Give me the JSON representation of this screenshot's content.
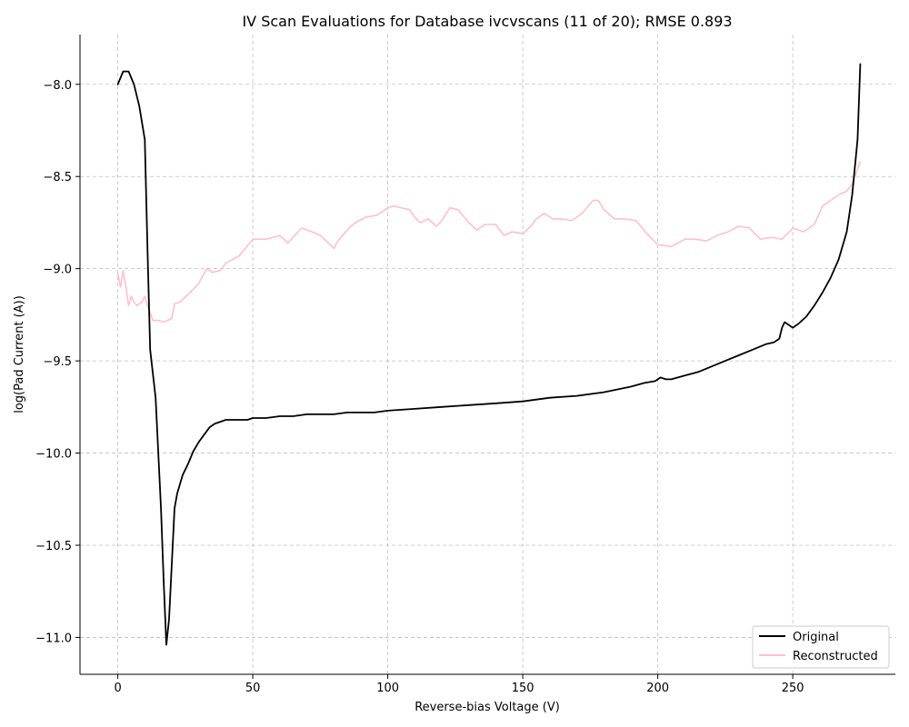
{
  "chart_data": {
    "type": "line",
    "title": "IV Scan Evaluations for Database ivcvscans (11 of 20); RMSE 0.893",
    "xlabel": "Reverse-bias Voltage (V)",
    "ylabel": "log(Pad Current (A))",
    "xlim": [
      -14,
      288
    ],
    "ylim": [
      -11.2,
      -7.73
    ],
    "x_ticks": [
      0,
      50,
      100,
      150,
      200,
      250
    ],
    "y_ticks": [
      -8.0,
      -8.5,
      -9.0,
      -9.5,
      -10.0,
      -10.5,
      -11.0
    ],
    "x_tick_labels": [
      "0",
      "50",
      "100",
      "150",
      "200",
      "250"
    ],
    "y_tick_labels": [
      "−8.0",
      "−8.5",
      "−9.0",
      "−9.5",
      "−10.0",
      "−10.5",
      "−11.0"
    ],
    "grid": true,
    "legend_position": "lower-right",
    "series": [
      {
        "name": "Original",
        "color": "#000000",
        "x": [
          0,
          2,
          4,
          6,
          8,
          10,
          11,
          12,
          14,
          16,
          17,
          18,
          19,
          20,
          21,
          22,
          23,
          24,
          26,
          28,
          30,
          32,
          34,
          36,
          38,
          40,
          45,
          48,
          50,
          55,
          60,
          65,
          70,
          80,
          85,
          90,
          95,
          100,
          110,
          120,
          130,
          140,
          150,
          160,
          170,
          180,
          190,
          195,
          199,
          201,
          203,
          205,
          210,
          215,
          220,
          225,
          230,
          235,
          240,
          243,
          245,
          246,
          247,
          248,
          250,
          252,
          255,
          258,
          261,
          264,
          267,
          270,
          272,
          274,
          275
        ],
        "y": [
          -8.0,
          -7.93,
          -7.93,
          -8.0,
          -8.12,
          -8.3,
          -8.9,
          -9.44,
          -9.7,
          -10.3,
          -10.7,
          -11.04,
          -10.9,
          -10.6,
          -10.3,
          -10.22,
          -10.17,
          -10.12,
          -10.06,
          -9.99,
          -9.94,
          -9.9,
          -9.86,
          -9.84,
          -9.83,
          -9.82,
          -9.82,
          -9.82,
          -9.81,
          -9.81,
          -9.8,
          -9.8,
          -9.79,
          -9.79,
          -9.78,
          -9.78,
          -9.78,
          -9.77,
          -9.76,
          -9.75,
          -9.74,
          -9.73,
          -9.72,
          -9.7,
          -9.69,
          -9.67,
          -9.64,
          -9.62,
          -9.61,
          -9.59,
          -9.6,
          -9.6,
          -9.58,
          -9.56,
          -9.53,
          -9.5,
          -9.47,
          -9.44,
          -9.41,
          -9.4,
          -9.38,
          -9.32,
          -9.29,
          -9.3,
          -9.32,
          -9.3,
          -9.26,
          -9.2,
          -9.13,
          -9.05,
          -8.95,
          -8.8,
          -8.6,
          -8.3,
          -7.89
        ]
      },
      {
        "name": "Reconstructed",
        "color": "#ffc0cb",
        "x": [
          0,
          1,
          2,
          3,
          4,
          5,
          6,
          7,
          8,
          9,
          10,
          11,
          12,
          13,
          15,
          17,
          20,
          21,
          23,
          26,
          30,
          33,
          35,
          38,
          40,
          45,
          50,
          55,
          60,
          63,
          68,
          72,
          75,
          78,
          80,
          82,
          85,
          88,
          92,
          96,
          100,
          102,
          105,
          108,
          110,
          112,
          115,
          118,
          120,
          123,
          126,
          130,
          133,
          136,
          140,
          143,
          146,
          150,
          153,
          155,
          158,
          161,
          165,
          168,
          172,
          176,
          178,
          180,
          184,
          188,
          192,
          196,
          200,
          205,
          210,
          214,
          218,
          222,
          226,
          230,
          234,
          238,
          242,
          246,
          250,
          254,
          258,
          261,
          264,
          267,
          270,
          272,
          275
        ],
        "y": [
          -9.03,
          -9.1,
          -9.01,
          -9.1,
          -9.2,
          -9.15,
          -9.18,
          -9.2,
          -9.19,
          -9.18,
          -9.15,
          -9.2,
          -9.24,
          -9.28,
          -9.28,
          -9.29,
          -9.27,
          -9.19,
          -9.18,
          -9.14,
          -9.08,
          -9.0,
          -9.02,
          -9.01,
          -8.97,
          -8.93,
          -8.84,
          -8.84,
          -8.82,
          -8.86,
          -8.78,
          -8.8,
          -8.82,
          -8.86,
          -8.89,
          -8.84,
          -8.79,
          -8.75,
          -8.72,
          -8.71,
          -8.67,
          -8.66,
          -8.67,
          -8.68,
          -8.72,
          -8.75,
          -8.73,
          -8.77,
          -8.74,
          -8.67,
          -8.68,
          -8.75,
          -8.79,
          -8.76,
          -8.76,
          -8.82,
          -8.8,
          -8.81,
          -8.77,
          -8.73,
          -8.7,
          -8.73,
          -8.73,
          -8.74,
          -8.7,
          -8.63,
          -8.63,
          -8.68,
          -8.73,
          -8.73,
          -8.74,
          -8.81,
          -8.87,
          -8.88,
          -8.84,
          -8.84,
          -8.85,
          -8.82,
          -8.8,
          -8.77,
          -8.78,
          -8.84,
          -8.83,
          -8.84,
          -8.78,
          -8.8,
          -8.76,
          -8.66,
          -8.63,
          -8.6,
          -8.58,
          -8.54,
          -8.42
        ]
      }
    ]
  }
}
